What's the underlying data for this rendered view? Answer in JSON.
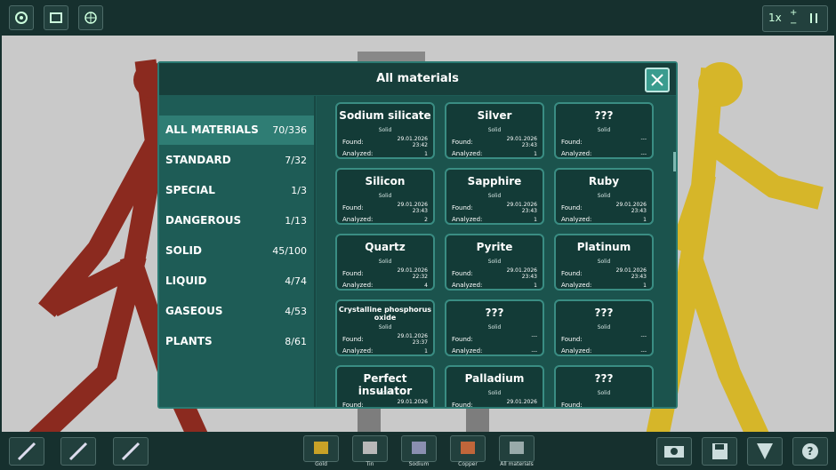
{
  "dialog": {
    "title": "All materials"
  },
  "speed": "1x",
  "categories": [
    {
      "name": "ALL MATERIALS",
      "count": "70/336"
    },
    {
      "name": "STANDARD",
      "count": "7/32"
    },
    {
      "name": "SPECIAL",
      "count": "1/3"
    },
    {
      "name": "DANGEROUS",
      "count": "1/13"
    },
    {
      "name": "SOLID",
      "count": "45/100"
    },
    {
      "name": "LIQUID",
      "count": "4/74"
    },
    {
      "name": "GASEOUS",
      "count": "4/53"
    },
    {
      "name": "PLANTS",
      "count": "8/61"
    }
  ],
  "labels": {
    "found": "Found:",
    "analyzed": "Analyzed:"
  },
  "materials": [
    {
      "name": "Sodium silicate",
      "state": "Solid",
      "found_date": "29.01.2026",
      "found_time": "23:42",
      "analyzed": 1
    },
    {
      "name": "Silver",
      "state": "Solid",
      "found_date": "29.01.2026",
      "found_time": "23:43",
      "analyzed": 1
    },
    {
      "name": "???",
      "state": "Solid",
      "found_date": "---",
      "found_time": "",
      "analyzed": "---"
    },
    {
      "name": "Silicon",
      "state": "Solid",
      "found_date": "29.01.2026",
      "found_time": "23:43",
      "analyzed": 2
    },
    {
      "name": "Sapphire",
      "state": "Solid",
      "found_date": "29.01.2026",
      "found_time": "23:43",
      "analyzed": 1
    },
    {
      "name": "Ruby",
      "state": "Solid",
      "found_date": "29.01.2026",
      "found_time": "23:43",
      "analyzed": 1
    },
    {
      "name": "Quartz",
      "state": "Solid",
      "found_date": "29.01.2026",
      "found_time": "22:32",
      "analyzed": 4
    },
    {
      "name": "Pyrite",
      "state": "Solid",
      "found_date": "29.01.2026",
      "found_time": "23:43",
      "analyzed": 1
    },
    {
      "name": "Platinum",
      "state": "Solid",
      "found_date": "29.01.2026",
      "found_time": "23:43",
      "analyzed": 1
    },
    {
      "name": "Crystalline phosphorus oxide",
      "state": "Solid",
      "found_date": "29.01.2026",
      "found_time": "23:37",
      "analyzed": 1
    },
    {
      "name": "???",
      "state": "Solid",
      "found_date": "---",
      "found_time": "",
      "analyzed": "---"
    },
    {
      "name": "???",
      "state": "Solid",
      "found_date": "---",
      "found_time": "",
      "analyzed": "---"
    },
    {
      "name": "Perfect insulator",
      "state": "Solid",
      "found_date": "29.01.2026",
      "found_time": "",
      "analyzed": ""
    },
    {
      "name": "Palladium",
      "state": "Solid",
      "found_date": "29.01.2026",
      "found_time": "",
      "analyzed": ""
    },
    {
      "name": "???",
      "state": "Solid",
      "found_date": "",
      "found_time": "",
      "analyzed": ""
    }
  ],
  "toolbar": [
    "Gold",
    "Tin",
    "Sodium",
    "Copper",
    "All materials"
  ]
}
